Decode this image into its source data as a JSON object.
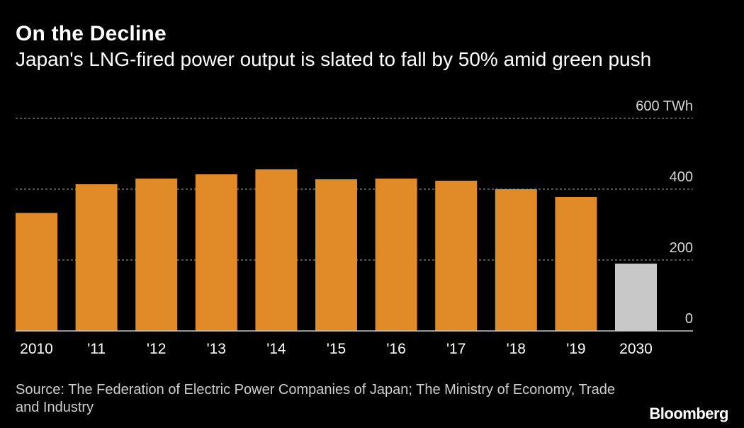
{
  "header": {
    "title": "On the Decline",
    "subtitle": "Japan's LNG-fired power output is slated to fall by 50% amid green push"
  },
  "chart_data": {
    "type": "bar",
    "title": "On the Decline",
    "subtitle": "Japan's LNG-fired power output is slated to fall by 50% amid green push",
    "categories": [
      "2010",
      "'11",
      "'12",
      "'13",
      "'14",
      "'15",
      "'16",
      "'17",
      "'18",
      "'19",
      "2030"
    ],
    "values": [
      333,
      414,
      430,
      442,
      456,
      428,
      430,
      424,
      400,
      378,
      190
    ],
    "ylabel": "TWh",
    "unit": "TWh",
    "ylim": [
      0,
      600
    ],
    "yticks": [
      0,
      200,
      400,
      600
    ],
    "ytick_labels": [
      "0",
      "200",
      "400",
      "600 TWh"
    ],
    "grid": true,
    "y_axis_side": "right",
    "colors": {
      "actual": "#e08a28",
      "projection": "#c8c8c8",
      "grid": "#8a8a8a",
      "axis": "#c8c8c8"
    },
    "projected_categories": [
      "2030"
    ]
  },
  "footer": {
    "source": "Source: The Federation of Electric Power Companies of Japan; The Ministry of Economy, Trade and Industry",
    "logo": "Bloomberg"
  }
}
